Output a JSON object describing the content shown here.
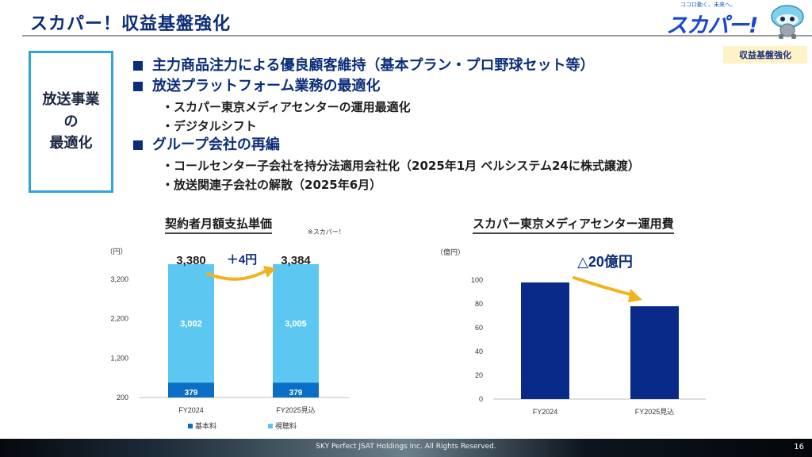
{
  "header": {
    "title": "スカパー！収益基盤強化",
    "badge": "収益基盤強化"
  },
  "logo": {
    "tagline": "ココロ動く、未来へ。",
    "text": "スカパー!"
  },
  "sidebox": {
    "line1": "放送事業",
    "line2": "の",
    "line3": "最適化"
  },
  "bullets": [
    {
      "head": "主力商品注力による優良顧客維持（基本プラン・プロ野球セット等）",
      "subs": []
    },
    {
      "head": "放送プラットフォーム業務の最適化",
      "subs": [
        "・スカパー東京メディアセンターの運用最適化",
        "・デジタルシフト"
      ]
    },
    {
      "head": "グループ会社の再編",
      "subs": [
        "・コールセンター子会社を持分法適用会社化（2025年1月 ベルシステム24に株式譲渡）",
        "・放送関連子会社の解散（2025年6月）"
      ]
    }
  ],
  "footer": {
    "copyright": "SKY Perfect JSAT Holdings Inc. All Rights Reserved.",
    "page": "16"
  },
  "colors": {
    "base_fee": "#0a6fc4",
    "viewing_fee": "#5cc8f2",
    "cost_bar": "#0a2a8a",
    "arrow": "#f3b21b",
    "accent_blue": "#0b2d7a"
  },
  "chart_data": [
    {
      "type": "bar",
      "stacked": true,
      "title": "契約者月額支払単価",
      "note": "※スカパー！",
      "unit_label": "（円）",
      "categories": [
        "FY2024",
        "FY2025見込"
      ],
      "series": [
        {
          "name": "基本料",
          "values": [
            379,
            379
          ]
        },
        {
          "name": "視聴料",
          "values": [
            3002,
            3005
          ]
        }
      ],
      "totals": [
        "3,380",
        "3,384"
      ],
      "value_labels": {
        "base": [
          "379",
          "379"
        ],
        "viewing": [
          "3,002",
          "3,005"
        ]
      },
      "change_label": "＋4円",
      "ylim": [
        200,
        3380
      ],
      "yticks": [
        200,
        1200,
        2200,
        3200
      ],
      "ytick_labels": [
        "200",
        "1,200",
        "2,200",
        "3,200"
      ],
      "grid": false,
      "legend": "bottom"
    },
    {
      "type": "bar",
      "title": "スカパー東京メディアセンター運用費",
      "unit_label": "（億円）",
      "categories": [
        "FY2024",
        "FY2025見込"
      ],
      "values": [
        98,
        78
      ],
      "change_label": "△20億円",
      "ylim": [
        0,
        100
      ],
      "yticks": [
        0,
        20,
        40,
        60,
        80,
        100
      ],
      "grid": false,
      "legend": "none"
    }
  ]
}
